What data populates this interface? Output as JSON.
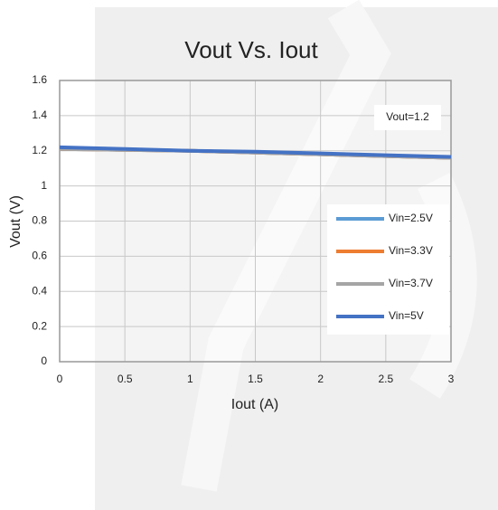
{
  "chart_data": {
    "type": "line",
    "title": "Vout Vs. Iout",
    "x_label": "Iout (A)",
    "y_label": "Vout (V)",
    "annotation": "Vout=1.2",
    "x": [
      0,
      0.5,
      1,
      1.5,
      2,
      2.5,
      3
    ],
    "series": [
      {
        "name": "Vin=2.5V",
        "color": "#5b9bd5",
        "values": [
          1.21,
          1.205,
          1.2,
          1.19,
          1.18,
          1.17,
          1.16
        ]
      },
      {
        "name": "Vin=3.3V",
        "color": "#ed7d31",
        "values": [
          1.21,
          1.205,
          1.2,
          1.19,
          1.18,
          1.17,
          1.16
        ]
      },
      {
        "name": "Vin=3.7V",
        "color": "#a5a5a5",
        "values": [
          1.21,
          1.205,
          1.2,
          1.19,
          1.18,
          1.17,
          1.16
        ]
      },
      {
        "name": "Vin=5V",
        "color": "#4472c4",
        "values": [
          1.22,
          1.21,
          1.2,
          1.195,
          1.185,
          1.175,
          1.165
        ]
      }
    ],
    "xlim": [
      0,
      3
    ],
    "xticks": [
      0,
      0.5,
      1,
      1.5,
      2,
      2.5,
      3
    ],
    "ylim": [
      0,
      1.6
    ],
    "yticks": [
      0,
      0.2,
      0.4,
      0.6,
      0.8,
      1,
      1.2,
      1.4,
      1.6
    ],
    "grid": true,
    "legend": "right"
  }
}
